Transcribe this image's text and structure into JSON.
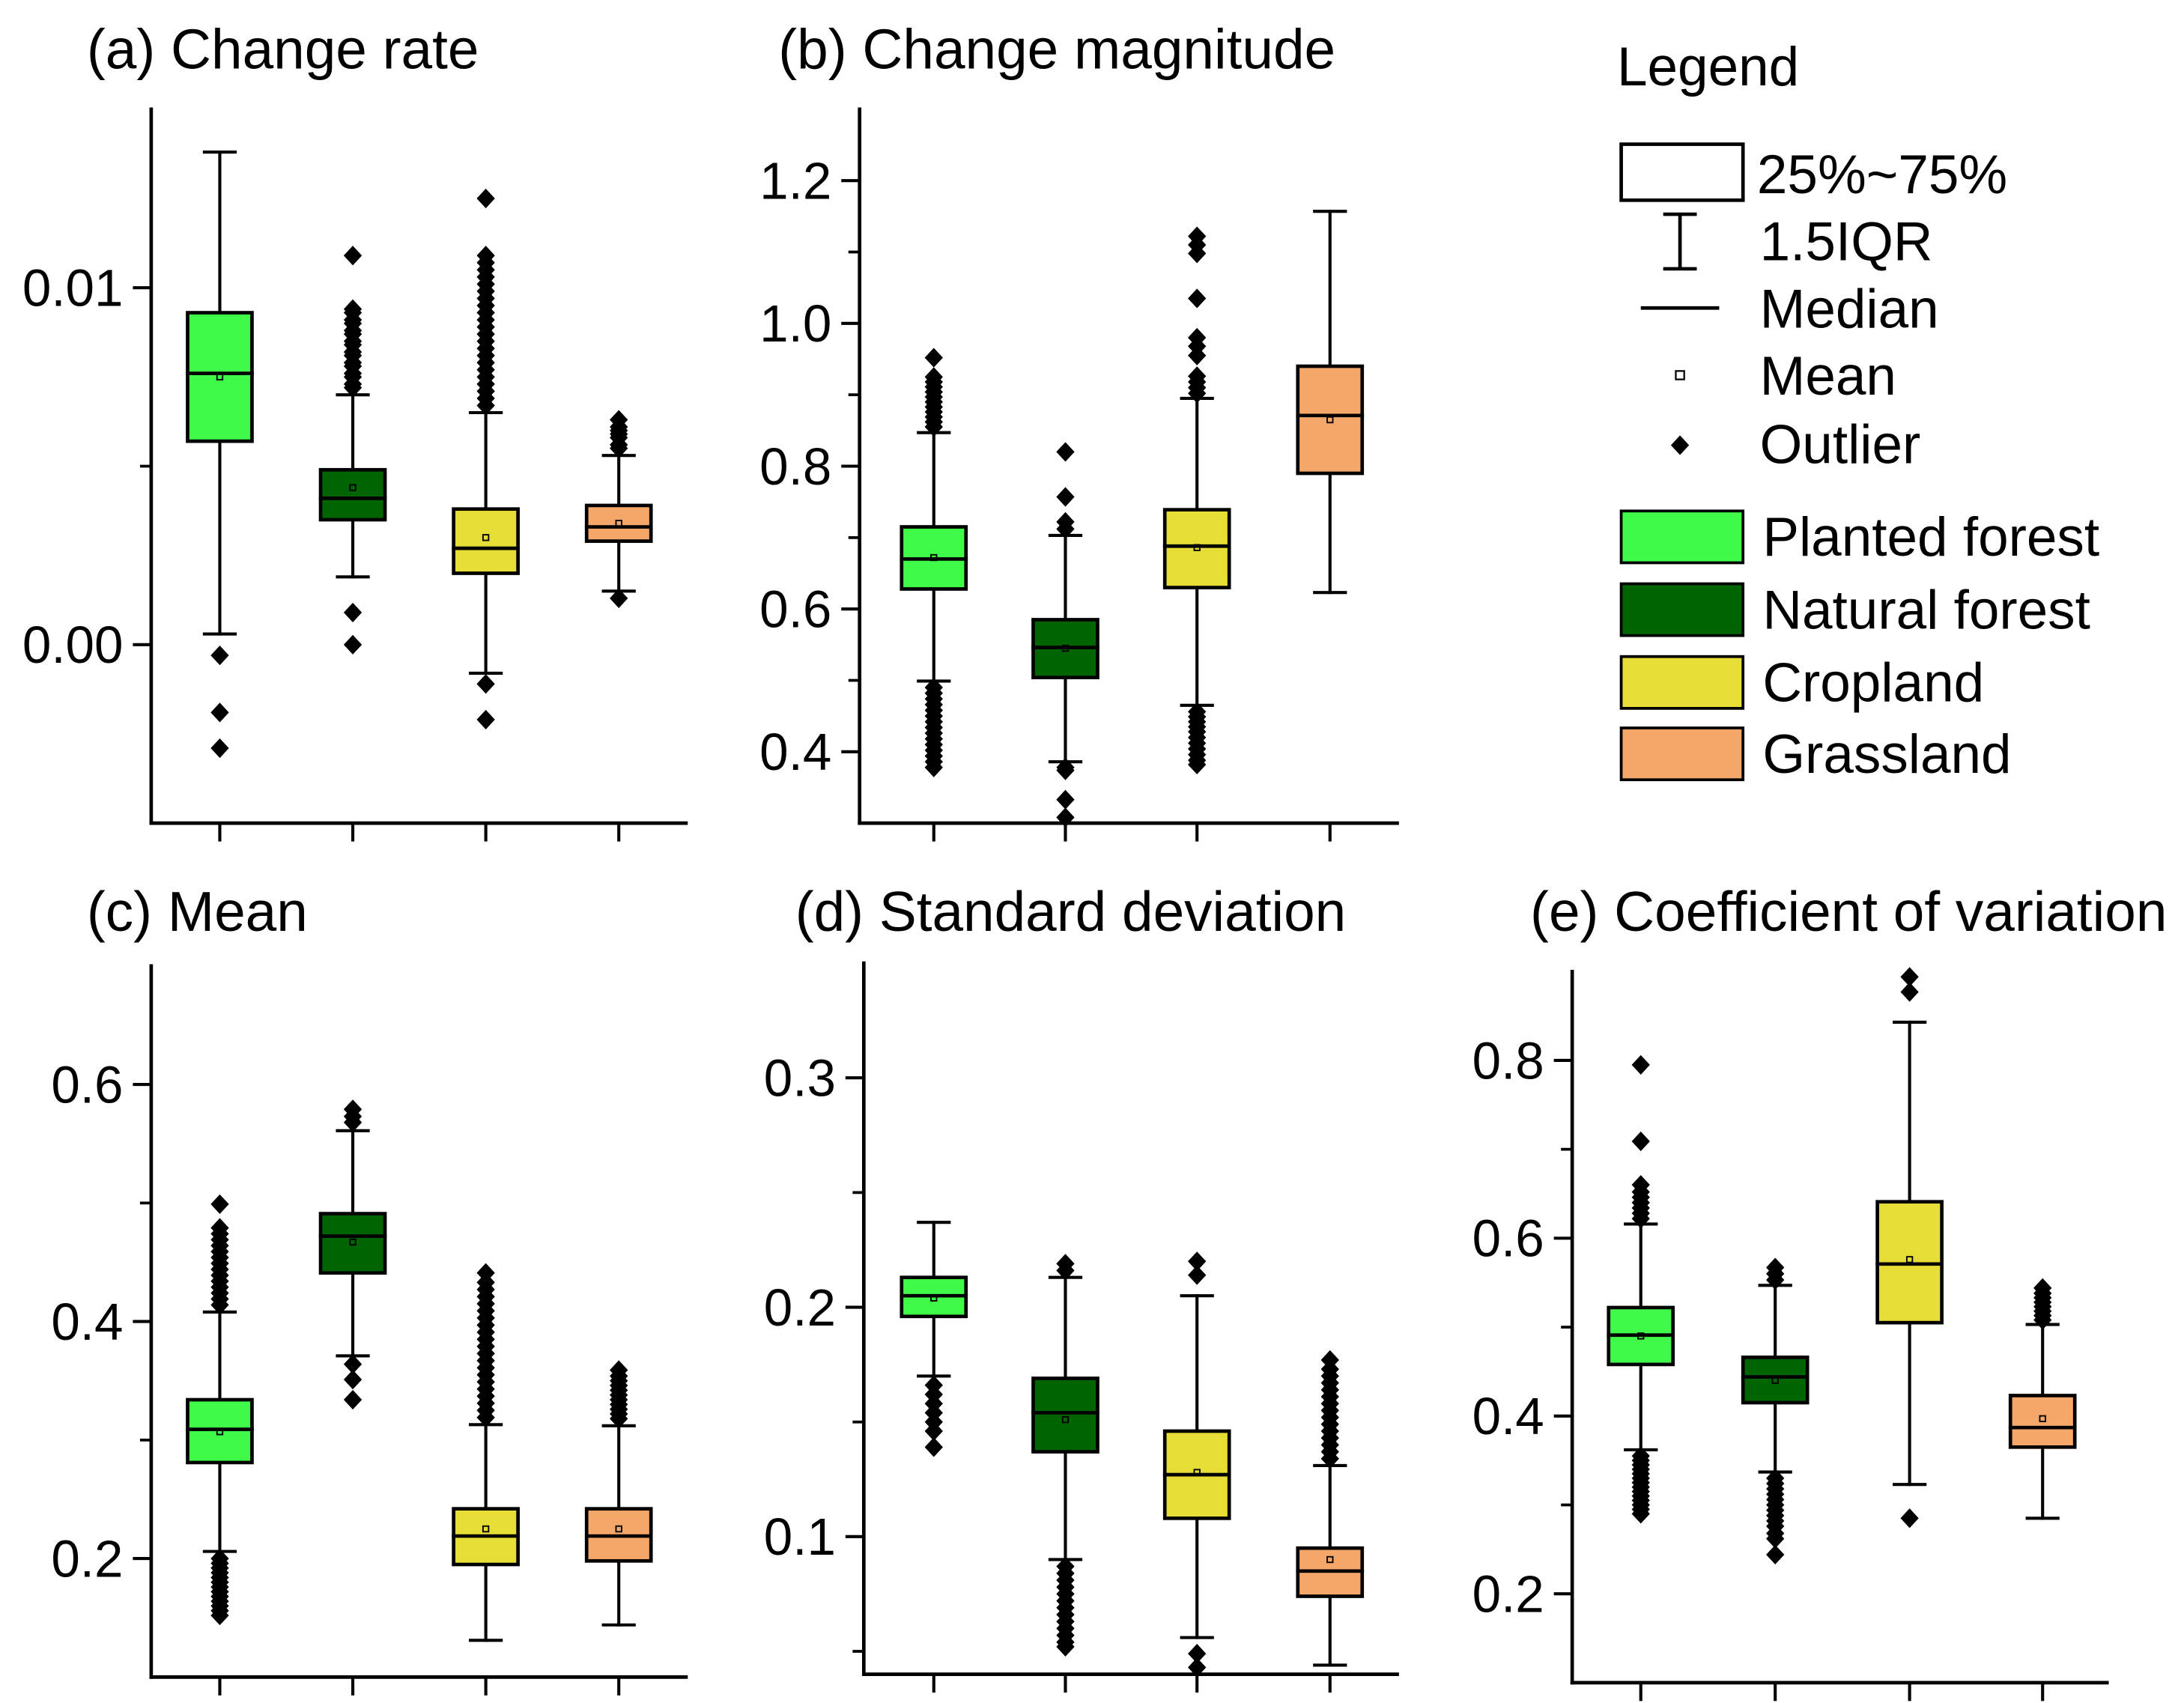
{
  "legend": {
    "title": "Legend",
    "symbols": {
      "box": "25%~75%",
      "whisker": "1.5IQR",
      "median": "Median",
      "mean": "Mean",
      "outlier": "Outlier"
    },
    "series": [
      {
        "name": "Planted forest",
        "color": "#40FA4A"
      },
      {
        "name": "Natural forest",
        "color": "#006400"
      },
      {
        "name": "Cropland",
        "color": "#E6DE36"
      },
      {
        "name": "Grassland",
        "color": "#F5A76A"
      }
    ]
  },
  "chart_data": [
    {
      "type": "box",
      "title": "(a) Change rate",
      "ylim": [
        -0.005,
        0.015
      ],
      "yticks": [
        0.0,
        0.01
      ],
      "ytick_labels": [
        "0.00",
        "0.01"
      ],
      "yminor": [
        0.005
      ],
      "boxes": [
        {
          "whislo": 0.0003,
          "q1": 0.0057,
          "med": 0.0076,
          "q3": 0.0093,
          "whishi": 0.0138,
          "mean": 0.0075,
          "fliers": [
            -0.0003,
            -0.0019,
            -0.0029
          ]
        },
        {
          "whislo": 0.0019,
          "q1": 0.0035,
          "med": 0.0041,
          "q3": 0.0049,
          "whishi": 0.007,
          "mean": 0.0044,
          "fliers": [
            0.0072,
            0.0073,
            0.0075,
            0.0076,
            0.0078,
            0.0079,
            0.0081,
            0.0082,
            0.0084,
            0.0085,
            0.0087,
            0.0088,
            0.009,
            0.0091,
            0.0093,
            0.0094,
            0.0109,
            0.0009,
            0.0
          ]
        },
        {
          "whislo": -0.0008,
          "q1": 0.002,
          "med": 0.0027,
          "q3": 0.0038,
          "whishi": 0.0065,
          "mean": 0.003,
          "fliers": [
            0.0067,
            0.0069,
            0.0071,
            0.0073,
            0.0075,
            0.0077,
            0.0079,
            0.0081,
            0.0083,
            0.0085,
            0.0087,
            0.0089,
            0.0091,
            0.0093,
            0.0095,
            0.0097,
            0.0099,
            0.0101,
            0.0103,
            0.0105,
            0.0107,
            0.0109,
            0.0125,
            -0.0011,
            -0.0021
          ]
        },
        {
          "whislo": 0.0015,
          "q1": 0.0029,
          "med": 0.0033,
          "q3": 0.0039,
          "whishi": 0.0053,
          "mean": 0.0034,
          "fliers": [
            0.0055,
            0.0056,
            0.0058,
            0.0059,
            0.006,
            0.0061,
            0.0063,
            0.0013
          ]
        }
      ]
    },
    {
      "type": "box",
      "title": "(b) Change magnitude",
      "ylim": [
        0.3,
        1.3
      ],
      "yticks": [
        0.4,
        0.6,
        0.8,
        1.0,
        1.2
      ],
      "ytick_labels": [
        "0.4",
        "0.6",
        "0.8",
        "1.0",
        "1.2"
      ],
      "yminor": [
        0.5,
        0.7,
        0.9,
        1.1
      ],
      "boxes": [
        {
          "whislo": 0.499,
          "q1": 0.628,
          "med": 0.67,
          "q3": 0.715,
          "whishi": 0.847,
          "mean": 0.672,
          "fliers": [
            0.855,
            0.862,
            0.869,
            0.876,
            0.883,
            0.89,
            0.897,
            0.904,
            0.911,
            0.918,
            0.925,
            0.952,
            0.49,
            0.482,
            0.474,
            0.466,
            0.458,
            0.45,
            0.442,
            0.434,
            0.426,
            0.418,
            0.41,
            0.402,
            0.394,
            0.386,
            0.378
          ]
        },
        {
          "whislo": 0.386,
          "q1": 0.504,
          "med": 0.546,
          "q3": 0.585,
          "whishi": 0.703,
          "mean": 0.545,
          "fliers": [
            0.712,
            0.722,
            0.757,
            0.82,
            0.378,
            0.374,
            0.333,
            0.308
          ]
        },
        {
          "whislo": 0.465,
          "q1": 0.63,
          "med": 0.688,
          "q3": 0.739,
          "whishi": 0.895,
          "mean": 0.686,
          "fliers": [
            0.902,
            0.91,
            0.918,
            0.926,
            0.955,
            0.968,
            0.98,
            1.035,
            1.098,
            1.11,
            1.122,
            0.456,
            0.449,
            0.442,
            0.435,
            0.428,
            0.42,
            0.412,
            0.404,
            0.396,
            0.388,
            0.382
          ]
        },
        {
          "whislo": 0.623,
          "q1": 0.79,
          "med": 0.871,
          "q3": 0.94,
          "whishi": 1.157,
          "mean": 0.865,
          "fliers": []
        }
      ]
    },
    {
      "type": "box",
      "title": "(c) Mean",
      "ylim": [
        0.1,
        0.7
      ],
      "yticks": [
        0.2,
        0.4,
        0.6
      ],
      "ytick_labels": [
        "0.2",
        "0.4",
        "0.6"
      ],
      "yminor": [
        0.3,
        0.5
      ],
      "boxes": [
        {
          "whislo": 0.206,
          "q1": 0.281,
          "med": 0.309,
          "q3": 0.334,
          "whishi": 0.408,
          "mean": 0.307,
          "fliers": [
            0.414,
            0.419,
            0.424,
            0.429,
            0.434,
            0.439,
            0.444,
            0.449,
            0.454,
            0.459,
            0.464,
            0.469,
            0.474,
            0.479,
            0.499,
            0.2,
            0.196,
            0.192,
            0.188,
            0.184,
            0.18,
            0.176,
            0.172,
            0.168,
            0.164,
            0.16,
            0.156,
            0.152
          ]
        },
        {
          "whislo": 0.371,
          "q1": 0.441,
          "med": 0.472,
          "q3": 0.491,
          "whishi": 0.561,
          "mean": 0.467,
          "fliers": [
            0.568,
            0.573,
            0.579,
            0.364,
            0.351,
            0.334
          ]
        },
        {
          "whislo": 0.131,
          "q1": 0.195,
          "med": 0.219,
          "q3": 0.242,
          "whishi": 0.313,
          "mean": 0.225,
          "fliers": [
            0.319,
            0.325,
            0.331,
            0.337,
            0.343,
            0.349,
            0.355,
            0.361,
            0.367,
            0.373,
            0.379,
            0.385,
            0.391,
            0.397,
            0.403,
            0.409,
            0.415,
            0.421,
            0.427,
            0.433,
            0.441
          ]
        },
        {
          "whislo": 0.144,
          "q1": 0.198,
          "med": 0.219,
          "q3": 0.242,
          "whishi": 0.312,
          "mean": 0.225,
          "fliers": [
            0.318,
            0.322,
            0.326,
            0.33,
            0.334,
            0.338,
            0.342,
            0.346,
            0.35,
            0.354,
            0.359
          ]
        }
      ]
    },
    {
      "type": "box",
      "title": "(d) Standard deviation",
      "ylim": [
        0.04,
        0.35
      ],
      "yticks": [
        0.1,
        0.2,
        0.3
      ],
      "ytick_labels": [
        "0.1",
        "0.2",
        "0.3"
      ],
      "yminor": [
        0.05,
        0.15,
        0.25
      ],
      "boxes": [
        {
          "whislo": 0.17,
          "q1": 0.196,
          "med": 0.205,
          "q3": 0.213,
          "whishi": 0.237,
          "mean": 0.204,
          "fliers": [
            0.166,
            0.162,
            0.158,
            0.154,
            0.15,
            0.146,
            0.139
          ]
        },
        {
          "whislo": 0.09,
          "q1": 0.137,
          "med": 0.154,
          "q3": 0.169,
          "whishi": 0.213,
          "mean": 0.151,
          "fliers": [
            0.216,
            0.219,
            0.087,
            0.084,
            0.081,
            0.078,
            0.075,
            0.072,
            0.069,
            0.066,
            0.063,
            0.06,
            0.057,
            0.054,
            0.052
          ]
        },
        {
          "whislo": 0.056,
          "q1": 0.108,
          "med": 0.127,
          "q3": 0.146,
          "whishi": 0.205,
          "mean": 0.128,
          "fliers": [
            0.214,
            0.22,
            0.049,
            0.043
          ]
        },
        {
          "whislo": 0.044,
          "q1": 0.074,
          "med": 0.085,
          "q3": 0.095,
          "whishi": 0.131,
          "mean": 0.09,
          "fliers": [
            0.134,
            0.137,
            0.14,
            0.143,
            0.146,
            0.149,
            0.152,
            0.155,
            0.158,
            0.161,
            0.164,
            0.167,
            0.17,
            0.173,
            0.177
          ]
        }
      ]
    },
    {
      "type": "box",
      "title": "(e) Coefficient of variation",
      "ylim": [
        0.1,
        0.9
      ],
      "yticks": [
        0.2,
        0.4,
        0.6,
        0.8
      ],
      "ytick_labels": [
        "0.2",
        "0.4",
        "0.6",
        "0.8"
      ],
      "yminor": [
        0.3,
        0.5,
        0.7
      ],
      "boxes": [
        {
          "whislo": 0.362,
          "q1": 0.458,
          "med": 0.491,
          "q3": 0.522,
          "whishi": 0.616,
          "mean": 0.49,
          "fliers": [
            0.622,
            0.628,
            0.634,
            0.64,
            0.646,
            0.652,
            0.66,
            0.709,
            0.795,
            0.355,
            0.35,
            0.345,
            0.34,
            0.335,
            0.33,
            0.325,
            0.32,
            0.315,
            0.31,
            0.305,
            0.3,
            0.295,
            0.29
          ]
        },
        {
          "whislo": 0.337,
          "q1": 0.415,
          "med": 0.444,
          "q3": 0.466,
          "whishi": 0.547,
          "mean": 0.44,
          "fliers": [
            0.553,
            0.56,
            0.567,
            0.33,
            0.324,
            0.318,
            0.312,
            0.306,
            0.3,
            0.294,
            0.288,
            0.282,
            0.276,
            0.268,
            0.262,
            0.244
          ]
        },
        {
          "whislo": 0.323,
          "q1": 0.505,
          "med": 0.571,
          "q3": 0.641,
          "whishi": 0.843,
          "mean": 0.576,
          "fliers": [
            0.877,
            0.894,
            0.285
          ]
        },
        {
          "whislo": 0.285,
          "q1": 0.365,
          "med": 0.387,
          "q3": 0.423,
          "whishi": 0.503,
          "mean": 0.397,
          "fliers": [
            0.508,
            0.513,
            0.518,
            0.523,
            0.528,
            0.533,
            0.538,
            0.544
          ]
        }
      ]
    }
  ]
}
